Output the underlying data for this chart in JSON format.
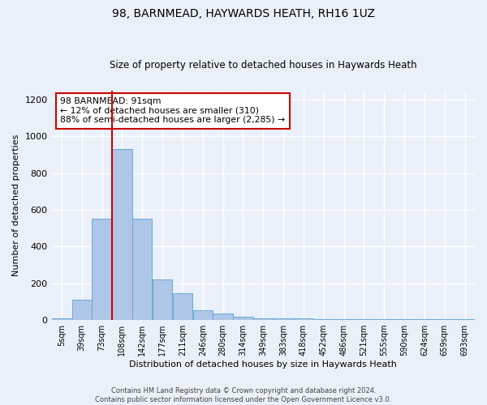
{
  "title1": "98, BARNMEAD, HAYWARDS HEATH, RH16 1UZ",
  "title2": "Size of property relative to detached houses in Haywards Heath",
  "xlabel": "Distribution of detached houses by size in Haywards Heath",
  "ylabel": "Number of detached properties",
  "bins": [
    "5sqm",
    "39sqm",
    "73sqm",
    "108sqm",
    "142sqm",
    "177sqm",
    "211sqm",
    "246sqm",
    "280sqm",
    "314sqm",
    "349sqm",
    "383sqm",
    "418sqm",
    "452sqm",
    "486sqm",
    "521sqm",
    "555sqm",
    "590sqm",
    "624sqm",
    "659sqm",
    "693sqm"
  ],
  "bar_heights": [
    10,
    110,
    550,
    930,
    550,
    220,
    145,
    55,
    35,
    20,
    10,
    10,
    10,
    5,
    5,
    5,
    5,
    5,
    5,
    5,
    5
  ],
  "bar_color": "#aec6e8",
  "bar_edgecolor": "#6aaad4",
  "background_color": "#eaf0fa",
  "grid_color": "#ffffff",
  "vline_position": 2.5,
  "vline_color": "#cc0000",
  "annotation_text": "98 BARNMEAD: 91sqm\n← 12% of detached houses are smaller (310)\n88% of semi-detached houses are larger (2,285) →",
  "annotation_box_color": "#ffffff",
  "annotation_box_edgecolor": "#cc0000",
  "ylim": [
    0,
    1250
  ],
  "yticks": [
    0,
    200,
    400,
    600,
    800,
    1000,
    1200
  ],
  "footer1": "Contains HM Land Registry data © Crown copyright and database right 2024.",
  "footer2": "Contains public sector information licensed under the Open Government Licence v3.0."
}
